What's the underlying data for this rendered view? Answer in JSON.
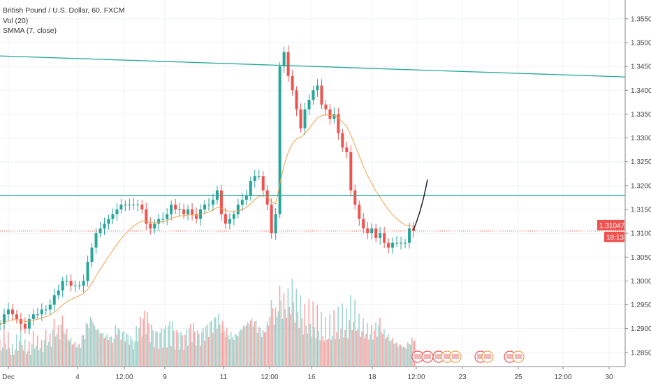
{
  "legend": {
    "symbol": "British Pound / U.S. Dollar, 60, FXCM",
    "volume": "Vol (20)",
    "smma": "SMMA (7, close)"
  },
  "price_badge": {
    "value": "1.31047",
    "countdown": "18:13"
  },
  "colors": {
    "up": "#26a69a",
    "down": "#ef5350",
    "smma": "#f5a04a",
    "trendline": "#26a69a",
    "last_price": "#ef5350",
    "projection": "#222222",
    "grid": "#eef2f7"
  },
  "chart_data": {
    "type": "candlestick",
    "title": "British Pound / U.S. Dollar, 60, FXCM",
    "yticks": [
      "1.35500",
      "1.35000",
      "1.34500",
      "1.34000",
      "1.33500",
      "1.33000",
      "1.32500",
      "1.32000",
      "1.31500",
      "1.31000",
      "1.30500",
      "1.30000",
      "1.29500",
      "1.29000",
      "1.28500"
    ],
    "ylim": [
      1.2815,
      1.3575
    ],
    "xticks": [
      "Dec",
      "4",
      "12:00",
      "9",
      "11",
      "12:00",
      "16",
      "18",
      "12:00",
      "23",
      "25",
      "12:00",
      "30"
    ],
    "closes": [
      1.291,
      1.293,
      1.294,
      1.293,
      1.292,
      1.291,
      1.29,
      1.292,
      1.293,
      1.293,
      1.294,
      1.294,
      1.295,
      1.297,
      1.298,
      1.3,
      1.3,
      1.299,
      1.299,
      1.299,
      1.3,
      1.304,
      1.307,
      1.31,
      1.311,
      1.312,
      1.313,
      1.314,
      1.315,
      1.316,
      1.316,
      1.316,
      1.316,
      1.316,
      1.315,
      1.312,
      1.311,
      1.312,
      1.313,
      1.313,
      1.314,
      1.316,
      1.315,
      1.315,
      1.314,
      1.315,
      1.314,
      1.313,
      1.315,
      1.316,
      1.316,
      1.317,
      1.319,
      1.314,
      1.312,
      1.313,
      1.314,
      1.316,
      1.317,
      1.318,
      1.321,
      1.322,
      1.322,
      1.319,
      1.316,
      1.31,
      1.314,
      1.345,
      1.348,
      1.343,
      1.34,
      1.336,
      1.332,
      1.336,
      1.338,
      1.34,
      1.341,
      1.337,
      1.336,
      1.334,
      1.335,
      1.331,
      1.328,
      1.327,
      1.319,
      1.316,
      1.313,
      1.311,
      1.31,
      1.311,
      1.309,
      1.31,
      1.308,
      1.307,
      1.308,
      1.308,
      1.308,
      1.308,
      1.311,
      1.3105
    ],
    "volumes": [
      30,
      45,
      38,
      25,
      35,
      50,
      30,
      28,
      40,
      35,
      30,
      42,
      38,
      55,
      48,
      60,
      45,
      35,
      30,
      28,
      40,
      55,
      62,
      50,
      45,
      40,
      38,
      35,
      48,
      42,
      40,
      36,
      30,
      45,
      55,
      62,
      48,
      40,
      38,
      42,
      45,
      50,
      40,
      38,
      35,
      42,
      48,
      40,
      38,
      45,
      50,
      55,
      60,
      52,
      45,
      40,
      38,
      42,
      50,
      55,
      60,
      58,
      50,
      45,
      55,
      80,
      70,
      95,
      85,
      90,
      100,
      88,
      80,
      70,
      75,
      72,
      68,
      60,
      55,
      58,
      62,
      66,
      70,
      65,
      80,
      75,
      60,
      55,
      50,
      48,
      52,
      58,
      45,
      40,
      35,
      30,
      28,
      25,
      30,
      35
    ],
    "trendline": {
      "from": 1.3472,
      "to": 1.3428
    },
    "horizontal_level": 1.3179,
    "last_price": 1.31047
  }
}
